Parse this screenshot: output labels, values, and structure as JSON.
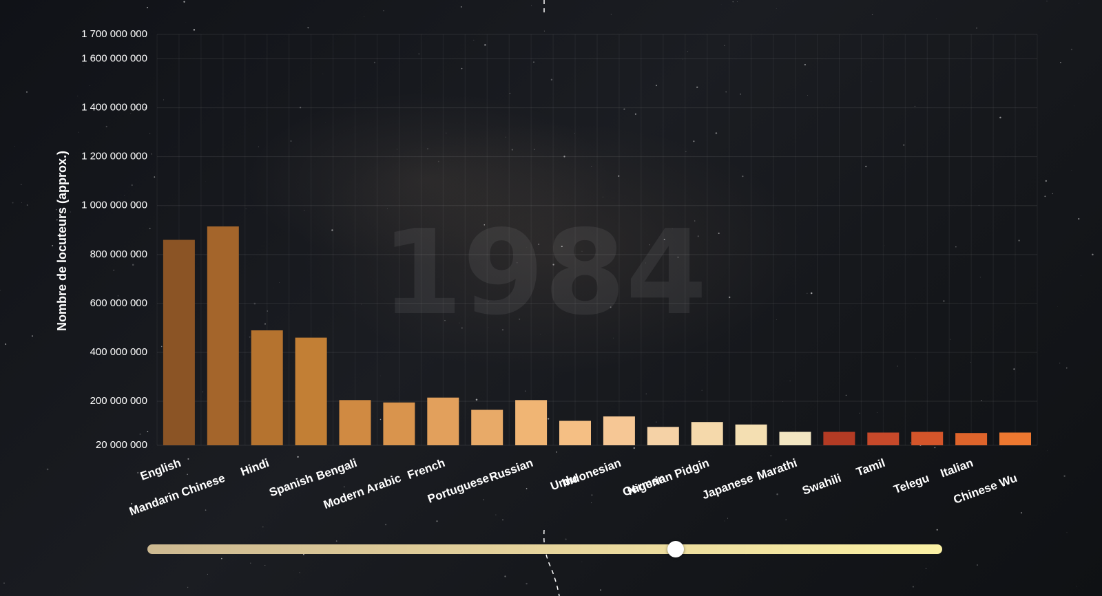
{
  "chart_data": {
    "type": "bar",
    "year": "1984",
    "ylabel": "Nombre de locuteurs (approx.)",
    "ylim": [
      20000000,
      1700000000
    ],
    "yticks": [
      20000000,
      200000000,
      400000000,
      600000000,
      800000000,
      1000000000,
      1200000000,
      1400000000,
      1600000000,
      1700000000
    ],
    "ytick_labels": [
      "20 000 000",
      "200 000 000",
      "400 000 000",
      "600 000 000",
      "800 000 000",
      "1 000 000 000",
      "1 200 000 000",
      "1 400 000 000",
      "1 600 000 000",
      "1 700 000 000"
    ],
    "categories": [
      "English",
      "Mandarin Chinese",
      "Hindi",
      "Spanish",
      "Bengali",
      "Modern Arabic",
      "French",
      "Portuguese",
      "Russian",
      "Urdu",
      "Indonesian",
      "German",
      "Nigerian Pidgin",
      "Japanese",
      "Marathi",
      "Swahili",
      "Tamil",
      "Telegu",
      "Italian",
      "Chinese Wu"
    ],
    "values": [
      860000000,
      915000000,
      490000000,
      460000000,
      205000000,
      195000000,
      215000000,
      165000000,
      205000000,
      120000000,
      138000000,
      95000000,
      115000000,
      105000000,
      75000000,
      75000000,
      72000000,
      75000000,
      70000000,
      72000000
    ],
    "colors": [
      "#8b5425",
      "#a4652b",
      "#b5732f",
      "#c27f35",
      "#d08a42",
      "#d9944d",
      "#e2a05c",
      "#e8aa68",
      "#f0b574",
      "#f5bf84",
      "#f6c795",
      "#f5d2a6",
      "#f5d9ab",
      "#f4dfb2",
      "#f3e6c2",
      "#b33b24",
      "#c7492a",
      "#d4552a",
      "#de642b",
      "#ed7830"
    ],
    "grid": true,
    "legend": "none"
  },
  "slider": {
    "position": 0.665
  }
}
